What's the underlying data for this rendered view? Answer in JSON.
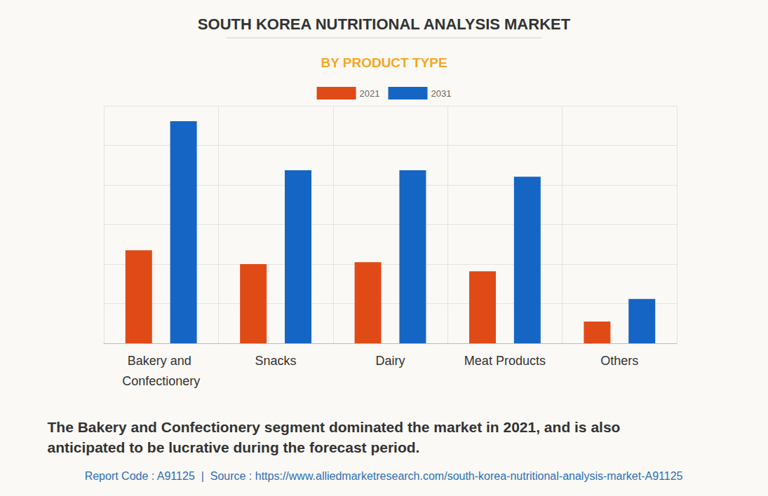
{
  "chart_data": {
    "type": "bar",
    "title": "SOUTH KOREA NUTRITIONAL ANALYSIS MARKET",
    "subtitle": "BY PRODUCT TYPE",
    "categories": [
      "Bakery and Confectionery",
      "Snacks",
      "Dairy",
      "Meat Products",
      "Others"
    ],
    "series": [
      {
        "name": "2021",
        "color": "#e04a17",
        "values": [
          2.35,
          2.0,
          2.05,
          1.82,
          0.55
        ]
      },
      {
        "name": "2031",
        "color": "#1565c4",
        "values": [
          5.61,
          4.37,
          4.37,
          4.21,
          1.12
        ]
      }
    ],
    "ylim": [
      0,
      6
    ],
    "yticks": [
      0,
      1,
      2,
      3,
      4,
      5,
      6
    ],
    "grid": true,
    "legend": "top",
    "tick_labels": "x",
    "annotations": [
      "The Bakery and Confectionery segment dominated the market in 2021, and is also anticipated to be lucrative during the forecast period.",
      "Report Code : A91125  |  Source : https://www.alliedmarketresearch.com/south-korea-nutritional-analysis-market-A91125"
    ]
  }
}
